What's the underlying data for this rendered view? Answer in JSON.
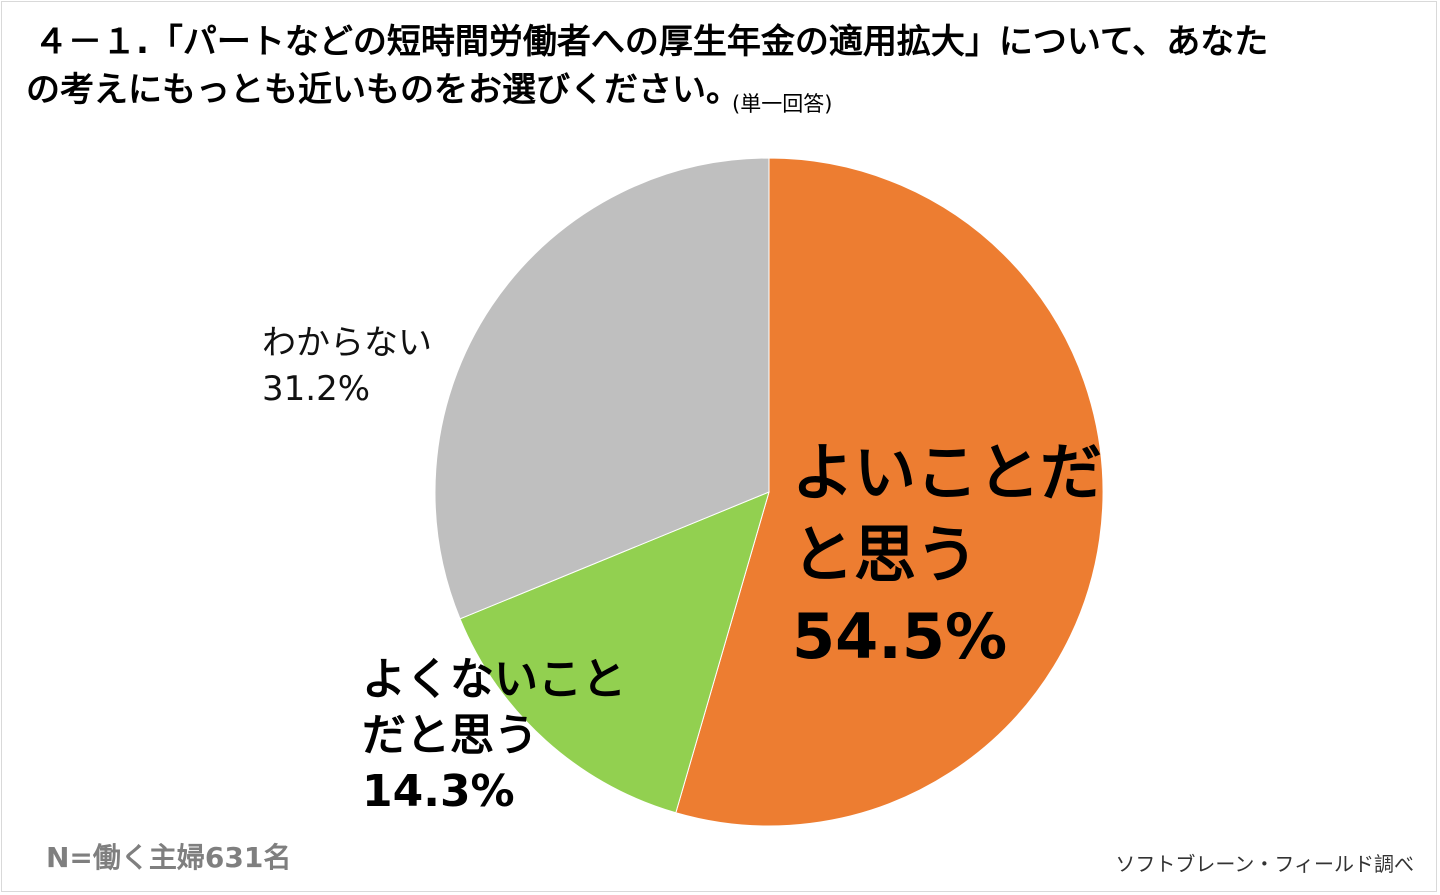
{
  "title": {
    "line1": "４－１.「パートなどの短時間労働者への厚生年金の適用拡大」について、あなた",
    "line2": "の考えにもっとも近いものをお選びください。",
    "note": "(単一回答)"
  },
  "sample_note": "N=働く主婦631名",
  "source_note": "ソフトブレーン・フィールド調べ",
  "chart_data": {
    "type": "pie",
    "title": "",
    "unit": "%",
    "slices": [
      {
        "label_line1": "よいことだ",
        "label_line2": "と思う",
        "value": 54.5,
        "value_text": "54.5%",
        "color": "#ED7D31"
      },
      {
        "label_line1": "よくないこと",
        "label_line2": "だと思う",
        "value": 14.3,
        "value_text": "14.3%",
        "color": "#92D050"
      },
      {
        "label_line1": "わからない",
        "label_line2": "",
        "value": 31.2,
        "value_text": "31.2%",
        "color": "#BFBFBF"
      }
    ]
  }
}
